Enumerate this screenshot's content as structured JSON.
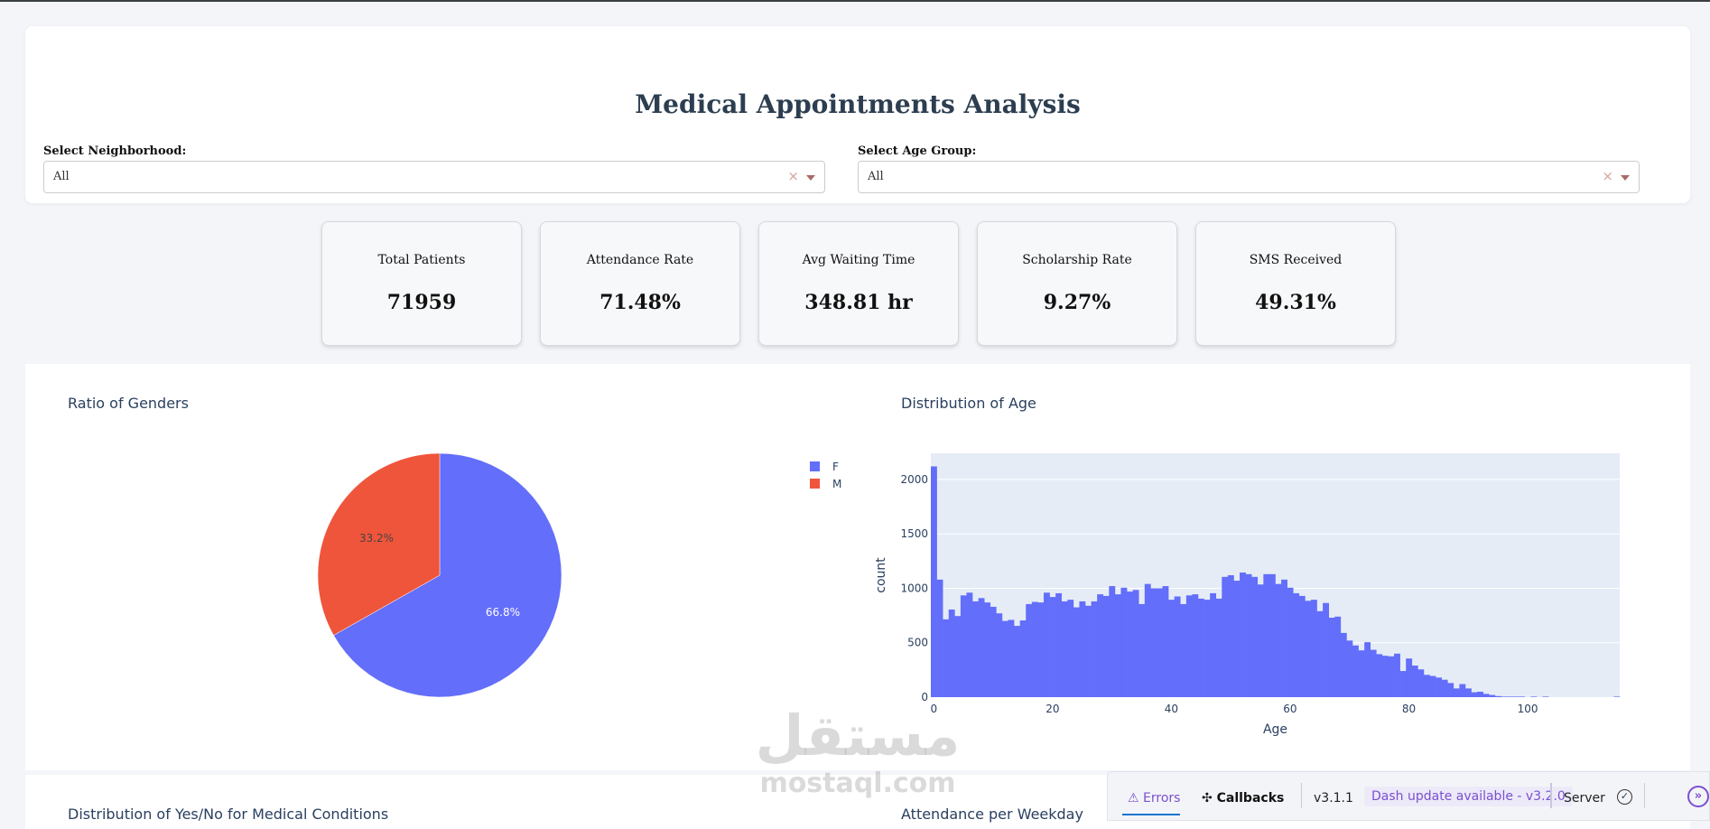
{
  "header": {
    "title": "Medical Appointments Analysis"
  },
  "filters": [
    {
      "label": "Select Neighborhood:",
      "value": "All"
    },
    {
      "label": "Select Age Group:",
      "value": "All"
    }
  ],
  "kpis": [
    {
      "title": "Total Patients",
      "value": "71959"
    },
    {
      "title": "Attendance Rate",
      "value": "71.48%"
    },
    {
      "title": "Avg Waiting Time",
      "value": "348.81 hr"
    },
    {
      "title": "Scholarship Rate",
      "value": "9.27%"
    },
    {
      "title": "SMS Received",
      "value": "49.31%"
    }
  ],
  "charts_row2": {
    "left_title": "Distribution of Yes/No for Medical Conditions",
    "right_title": "Attendance per Weekday"
  },
  "chart_data": [
    {
      "type": "pie",
      "title": "Ratio of Genders",
      "labels": [
        "F",
        "M"
      ],
      "values": [
        66.8,
        33.2
      ],
      "text": [
        "66.8%",
        "33.2%"
      ],
      "colors": [
        "#636efa",
        "#ef553b"
      ],
      "legend": "top-right"
    },
    {
      "type": "bar",
      "title": "Distribution of Age",
      "xlabel": "Age",
      "ylabel": "count",
      "xlim": [
        -0.5,
        115.5
      ],
      "ylim": [
        0,
        2240
      ],
      "xticks": [
        0,
        20,
        40,
        60,
        80,
        100
      ],
      "yticks": [
        0,
        500,
        1000,
        1500,
        2000
      ],
      "grid": true,
      "color": "#636efa",
      "x_start": 0,
      "values": [
        2120,
        1080,
        715,
        805,
        745,
        935,
        960,
        880,
        910,
        870,
        830,
        770,
        700,
        710,
        655,
        705,
        855,
        875,
        870,
        960,
        920,
        955,
        880,
        895,
        825,
        880,
        840,
        880,
        945,
        930,
        1020,
        945,
        1005,
        970,
        985,
        855,
        1040,
        1000,
        1000,
        1020,
        895,
        925,
        855,
        935,
        945,
        905,
        895,
        955,
        905,
        1105,
        1120,
        1070,
        1145,
        1130,
        1105,
        1035,
        1130,
        1130,
        1040,
        1080,
        1005,
        955,
        930,
        885,
        895,
        790,
        865,
        730,
        740,
        590,
        520,
        475,
        430,
        505,
        435,
        395,
        380,
        375,
        400,
        240,
        355,
        290,
        255,
        205,
        195,
        180,
        160,
        130,
        80,
        120,
        80,
        45,
        50,
        30,
        20,
        10,
        5,
        5,
        5,
        5,
        0,
        5,
        0,
        5,
        0,
        0,
        0,
        0,
        0,
        0,
        0,
        0,
        0,
        0,
        0,
        5
      ]
    }
  ],
  "debug": {
    "errors": "Errors",
    "callbacks": "Callbacks",
    "version": "v3.1.1",
    "update": "Dash update available - v3.2.0",
    "server": "Server"
  },
  "watermark": {
    "text": "mostaql.com"
  }
}
